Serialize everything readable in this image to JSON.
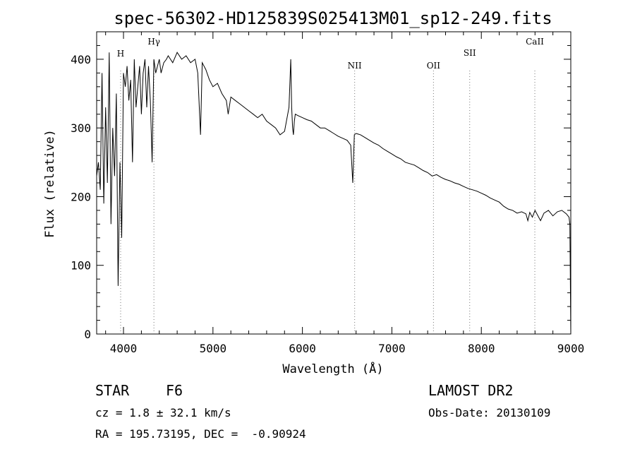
{
  "chart_data": {
    "type": "line",
    "title": "spec-56302-HD125839S025413M01_sp12-249.fits",
    "xlabel": "Wavelength (Å)",
    "ylabel": "Flux (relative)",
    "xlim": [
      3700,
      9000
    ],
    "ylim": [
      0,
      440
    ],
    "xticks": [
      4000,
      5000,
      6000,
      7000,
      8000,
      9000
    ],
    "yticks": [
      0,
      100,
      200,
      300,
      400
    ],
    "grid": false,
    "line_color": "#000000",
    "series": [
      {
        "x": [
          3700,
          3720,
          3740,
          3760,
          3780,
          3800,
          3820,
          3840,
          3860,
          3880,
          3900,
          3920,
          3940,
          3960,
          3980,
          4000,
          4020,
          4040,
          4060,
          4080,
          4101,
          4120,
          4140,
          4160,
          4180,
          4200,
          4220,
          4240,
          4260,
          4280,
          4300,
          4320,
          4340,
          4360,
          4380,
          4400,
          4420,
          4450,
          4480,
          4500,
          4550,
          4600,
          4650,
          4700,
          4750,
          4800,
          4830,
          4861,
          4880,
          4920,
          4960,
          5000,
          5050,
          5100,
          5150,
          5170,
          5200,
          5250,
          5300,
          5350,
          5400,
          5450,
          5500,
          5550,
          5600,
          5650,
          5700,
          5750,
          5800,
          5850,
          5870,
          5880,
          5890,
          5900,
          5910,
          5920,
          5950,
          6000,
          6050,
          6100,
          6150,
          6200,
          6250,
          6300,
          6350,
          6400,
          6450,
          6500,
          6540,
          6563,
          6580,
          6600,
          6650,
          6700,
          6750,
          6800,
          6850,
          6900,
          6950,
          7000,
          7050,
          7100,
          7150,
          7200,
          7250,
          7300,
          7350,
          7400,
          7450,
          7500,
          7550,
          7600,
          7650,
          7700,
          7750,
          7800,
          7850,
          7900,
          7950,
          8000,
          8050,
          8100,
          8150,
          8200,
          8250,
          8300,
          8350,
          8400,
          8450,
          8498,
          8520,
          8542,
          8570,
          8600,
          8662,
          8700,
          8750,
          8800,
          8850,
          8900,
          8950,
          8980,
          8990,
          9000
        ],
        "y": [
          230,
          250,
          210,
          380,
          190,
          330,
          220,
          410,
          160,
          300,
          230,
          350,
          70,
          250,
          140,
          380,
          360,
          390,
          340,
          370,
          250,
          400,
          330,
          360,
          390,
          320,
          380,
          400,
          330,
          390,
          340,
          250,
          400,
          380,
          390,
          400,
          380,
          395,
          400,
          405,
          395,
          410,
          400,
          405,
          395,
          400,
          380,
          290,
          395,
          385,
          370,
          360,
          365,
          350,
          340,
          320,
          345,
          340,
          335,
          330,
          325,
          320,
          315,
          320,
          310,
          305,
          300,
          290,
          295,
          330,
          400,
          330,
          300,
          290,
          310,
          320,
          318,
          315,
          312,
          310,
          305,
          300,
          300,
          296,
          292,
          288,
          285,
          282,
          275,
          220,
          290,
          292,
          290,
          286,
          282,
          278,
          275,
          270,
          266,
          262,
          258,
          255,
          250,
          248,
          246,
          242,
          238,
          235,
          230,
          232,
          228,
          225,
          223,
          220,
          218,
          215,
          212,
          210,
          208,
          205,
          202,
          198,
          195,
          192,
          186,
          182,
          180,
          176,
          178,
          175,
          165,
          177,
          170,
          180,
          165,
          176,
          180,
          172,
          178,
          180,
          175,
          170,
          160,
          0
        ]
      }
    ],
    "annotations": [
      {
        "label": "H",
        "x": 3968
      },
      {
        "label": "Hγ",
        "x": 4340
      },
      {
        "label": "NII",
        "x": 6584
      },
      {
        "label": "OII",
        "x": 7465
      },
      {
        "label": "SII",
        "x": 7870
      },
      {
        "label": "CaII",
        "x": 8598
      }
    ]
  },
  "info": {
    "object_type": "STAR",
    "subclass": "F6",
    "survey": "LAMOST DR2",
    "redshift_line": "cz = 1.8 ± 32.1 km/s",
    "obs_date_line": "Obs-Date: 20130109",
    "coords_line": "RA = 195.73195, DEC =  -0.90924"
  }
}
